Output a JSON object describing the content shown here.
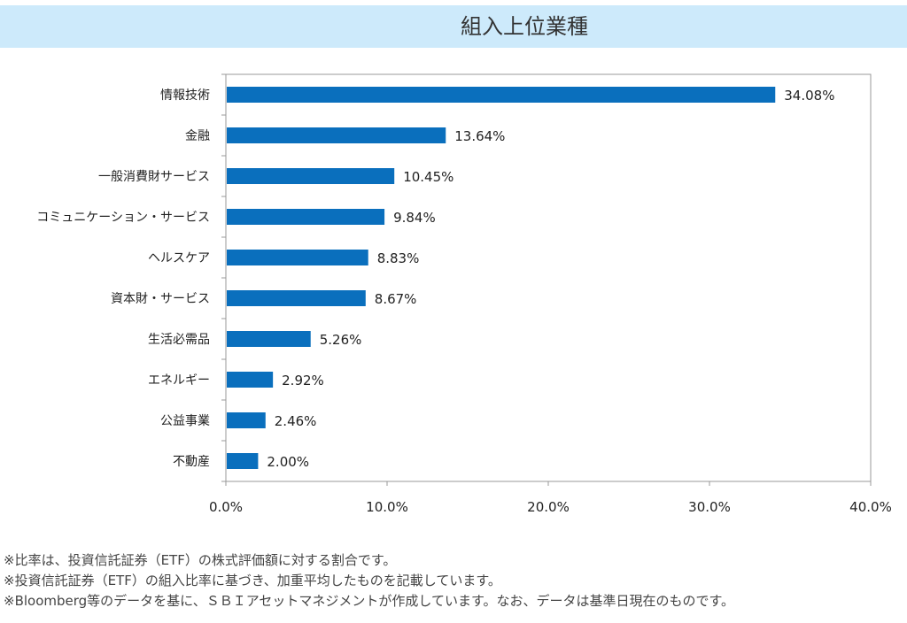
{
  "header": {
    "title": "組入上位業種"
  },
  "colors": {
    "bar": "#0a6fbd",
    "title_background": "#cdeafb",
    "frame": "#999999"
  },
  "chart_data": {
    "type": "bar",
    "orientation": "horizontal",
    "title": "組入上位業種",
    "categories": [
      "情報技術",
      "金融",
      "一般消費財サービス",
      "コミュニケーション・サービス",
      "ヘルスケア",
      "資本財・サービス",
      "生活必需品",
      "エネルギー",
      "公益事業",
      "不動産"
    ],
    "values": [
      34.08,
      13.64,
      10.45,
      9.84,
      8.83,
      8.67,
      5.26,
      2.92,
      2.46,
      2.0
    ],
    "value_labels": [
      "34.08%",
      "13.64%",
      "10.45%",
      "9.84%",
      "8.83%",
      "8.67%",
      "5.26%",
      "2.92%",
      "2.46%",
      "2.00%"
    ],
    "xlim": [
      0,
      40
    ],
    "xticks": [
      0,
      10,
      20,
      30,
      40
    ],
    "xtick_labels": [
      "0.0%",
      "10.0%",
      "20.0%",
      "30.0%",
      "40.0%"
    ],
    "xlabel": "",
    "ylabel": "",
    "grid": false,
    "legend": "none"
  },
  "notes": [
    "※比率は、投資信託証券（ETF）の株式評価額に対する割合です。",
    "※投資信託証券（ETF）の組入比率に基づき、加重平均したものを記載しています。",
    "※Bloomberg等のデータを基に、ＳＢＩアセットマネジメントが作成しています。なお、データは基準日現在のものです。"
  ]
}
